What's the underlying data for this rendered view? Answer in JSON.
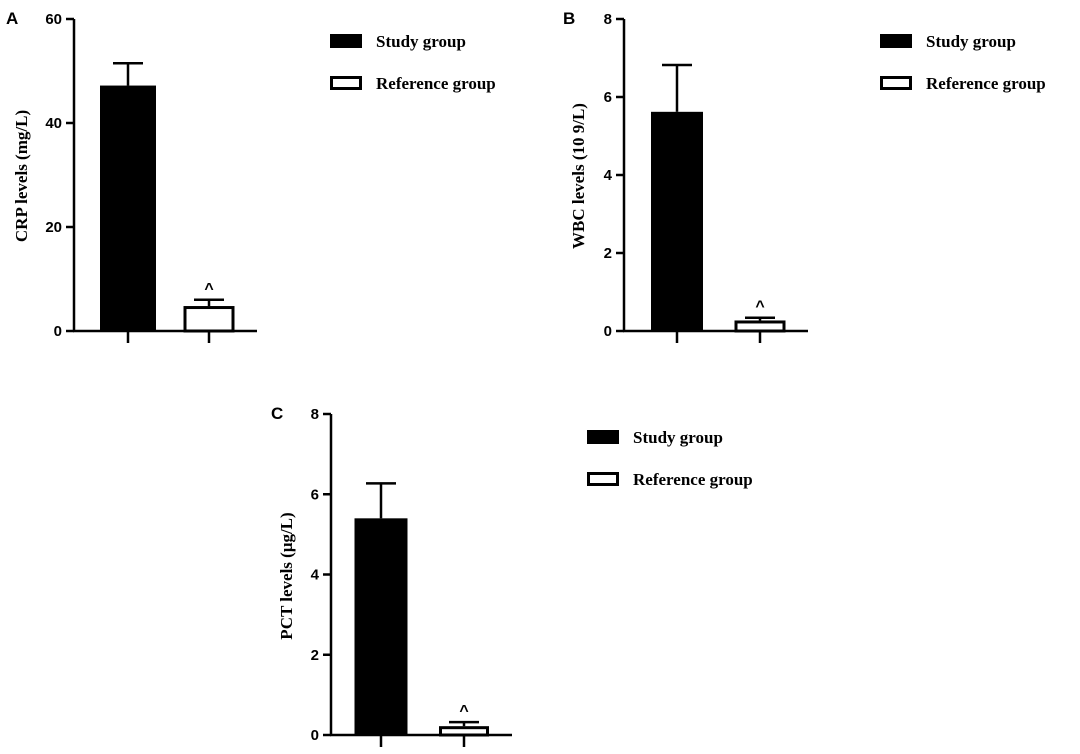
{
  "chart_data": [
    {
      "panel": "A",
      "type": "bar",
      "ylabel": "CRP levels (mg/L)",
      "ylim": [
        0,
        60
      ],
      "yticks": [
        "0",
        "20",
        "40",
        "60"
      ],
      "series": [
        {
          "name": "Study group",
          "value": 47.2,
          "error": 4.3,
          "color": "#000000",
          "sig": ""
        },
        {
          "name": "Reference group",
          "value": 4.8,
          "error": 1.2,
          "color": "#ffffff",
          "sig": "^"
        }
      ],
      "legend": [
        "Study group",
        "Reference group"
      ]
    },
    {
      "panel": "B",
      "type": "bar",
      "ylabel": "WBC levels (10 9/L)",
      "ylim": [
        0,
        8
      ],
      "yticks": [
        "0",
        "2",
        "4",
        "6",
        "8"
      ],
      "series": [
        {
          "name": "Study group",
          "value": 5.62,
          "error": 1.2,
          "color": "#000000",
          "sig": ""
        },
        {
          "name": "Reference group",
          "value": 0.27,
          "error": 0.07,
          "color": "#ffffff",
          "sig": "^"
        }
      ],
      "legend": [
        "Study group",
        "Reference group"
      ]
    },
    {
      "panel": "C",
      "type": "bar",
      "ylabel": "PCT levels (μg/L)",
      "ylim": [
        0,
        8
      ],
      "yticks": [
        "0",
        "2",
        "4",
        "6",
        "8"
      ],
      "series": [
        {
          "name": "Study group",
          "value": 5.4,
          "error": 0.87,
          "color": "#000000",
          "sig": ""
        },
        {
          "name": "Reference group",
          "value": 0.22,
          "error": 0.1,
          "color": "#ffffff",
          "sig": "^"
        }
      ],
      "legend": [
        "Study group",
        "Reference group"
      ]
    }
  ]
}
